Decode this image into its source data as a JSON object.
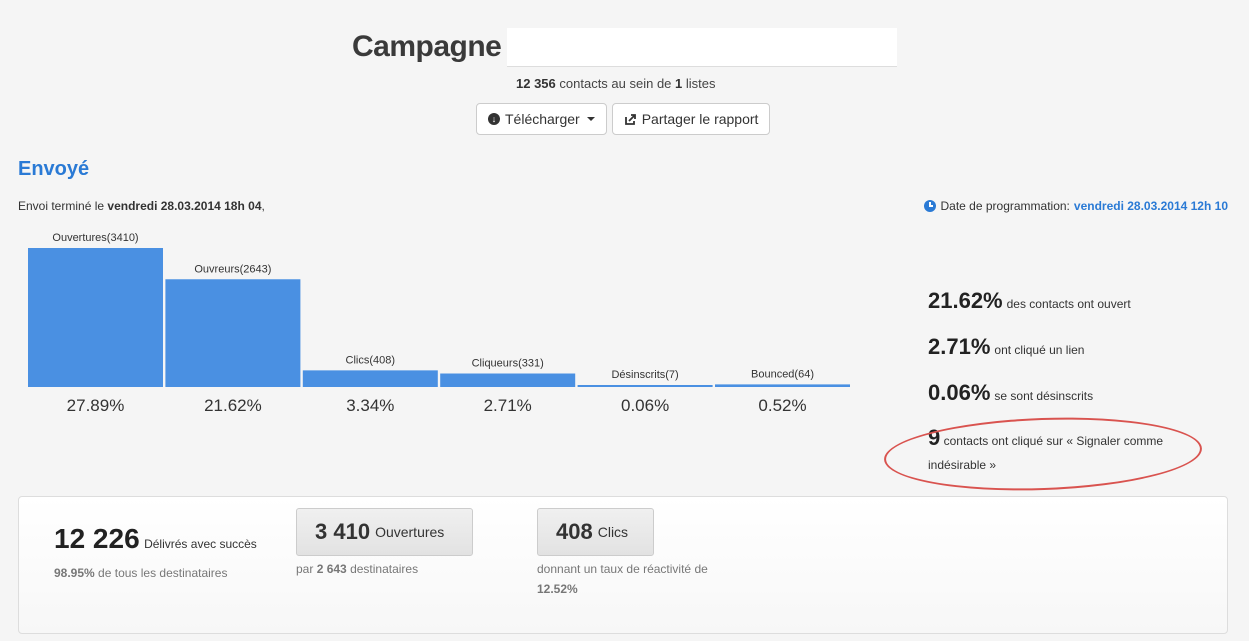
{
  "header": {
    "title": "Campagne",
    "contacts_count": "12 356",
    "contacts_mid": "contacts au sein de",
    "lists_count": "1",
    "lists_label": "listes",
    "download_label": "Télécharger",
    "share_label": "Partager le rapport"
  },
  "status": {
    "title": "Envoyé",
    "sent_prefix": "Envoi terminé le",
    "sent_date": "vendredi 28.03.2014 18h 04",
    "sent_suffix": ",",
    "schedule_label": "Date de programmation:",
    "schedule_date": "vendredi 28.03.2014 12h 10"
  },
  "chart_data": {
    "type": "bar",
    "categories": [
      "Ouvertures(3410)",
      "Ouvreurs(2643)",
      "Clics(408)",
      "Cliqueurs(331)",
      "Désinscrits(7)",
      "Bounced(64)"
    ],
    "values": [
      3410,
      2643,
      408,
      331,
      7,
      64
    ],
    "percent_labels": [
      "27.89%",
      "21.62%",
      "3.34%",
      "2.71%",
      "0.06%",
      "0.52%"
    ],
    "bar_color": "#4a90e2",
    "ylim": [
      0,
      3410
    ]
  },
  "stats": [
    {
      "value": "21.62%",
      "label": "des contacts ont ouvert"
    },
    {
      "value": "2.71%",
      "label": "ont cliqué un lien"
    },
    {
      "value": "0.06%",
      "label": "se sont désinscrits"
    }
  ],
  "spam": {
    "count": "9",
    "label": "contacts ont cliqué sur « Signaler comme indésirable »"
  },
  "summary": {
    "delivered_value": "12 226",
    "delivered_label": "Délivrés avec succès",
    "delivered_pct": "98.95%",
    "delivered_pct_label": "de tous les destinataires",
    "opens_value": "3 410",
    "opens_label": "Ouvertures",
    "opens_desc_prefix": "par",
    "opens_desc_value": "2 643",
    "opens_desc_suffix": "destinataires",
    "clicks_value": "408",
    "clicks_label": "Clics",
    "clicks_desc": "donnant un taux de réactivité de",
    "clicks_rate": "12.52%"
  },
  "colors": {
    "accent": "#2a7ad5",
    "bar": "#4a90e2",
    "annotation": "#d9534f"
  }
}
